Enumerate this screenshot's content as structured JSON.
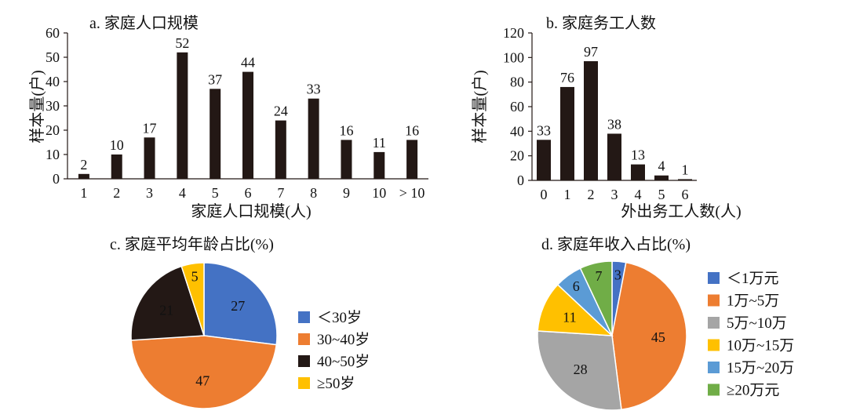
{
  "chart_data": [
    {
      "id": "a",
      "type": "bar",
      "title": "a. 家庭人口规模",
      "xlabel": "家庭人口规模(人)",
      "ylabel": "样本量(户)",
      "categories": [
        "1",
        "2",
        "3",
        "4",
        "5",
        "6",
        "7",
        "8",
        "9",
        "10",
        "> 10"
      ],
      "values": [
        2,
        10,
        17,
        52,
        37,
        44,
        24,
        33,
        16,
        11,
        16
      ],
      "ylim": [
        0,
        60
      ],
      "yticks": [
        0,
        10,
        20,
        30,
        40,
        50,
        60
      ],
      "bar_color": "#231815"
    },
    {
      "id": "b",
      "type": "bar",
      "title": "b. 家庭务工人数",
      "xlabel": "外出务工人数(人)",
      "ylabel": "样本量(户)",
      "categories": [
        "0",
        "1",
        "2",
        "3",
        "4",
        "5",
        "6"
      ],
      "values": [
        33,
        76,
        97,
        38,
        13,
        4,
        1
      ],
      "ylim": [
        0,
        120
      ],
      "yticks": [
        0,
        20,
        40,
        60,
        80,
        100,
        120
      ],
      "bar_color": "#231815"
    },
    {
      "id": "c",
      "type": "pie",
      "title": "c. 家庭平均年龄占比(%)",
      "slices": [
        {
          "label": "＜30岁",
          "value": 27,
          "color": "#4472C4"
        },
        {
          "label": "30~40岁",
          "value": 47,
          "color": "#ED7D31"
        },
        {
          "label": "40~50岁",
          "value": 21,
          "color": "#231815"
        },
        {
          "label": "≥50岁",
          "value": 5,
          "color": "#FFC000"
        }
      ]
    },
    {
      "id": "d",
      "type": "pie",
      "title": "d. 家庭年收入占比(%)",
      "slices": [
        {
          "label": "＜1万元",
          "value": 3,
          "color": "#4472C4"
        },
        {
          "label": "1万~5万",
          "value": 45,
          "color": "#ED7D31"
        },
        {
          "label": "5万~10万",
          "value": 28,
          "color": "#A5A5A5"
        },
        {
          "label": "10万~15万",
          "value": 11,
          "color": "#FFC000"
        },
        {
          "label": "15万~20万",
          "value": 6,
          "color": "#5B9BD5"
        },
        {
          "label": "≥20万元",
          "value": 7,
          "color": "#70AD47"
        }
      ]
    }
  ]
}
